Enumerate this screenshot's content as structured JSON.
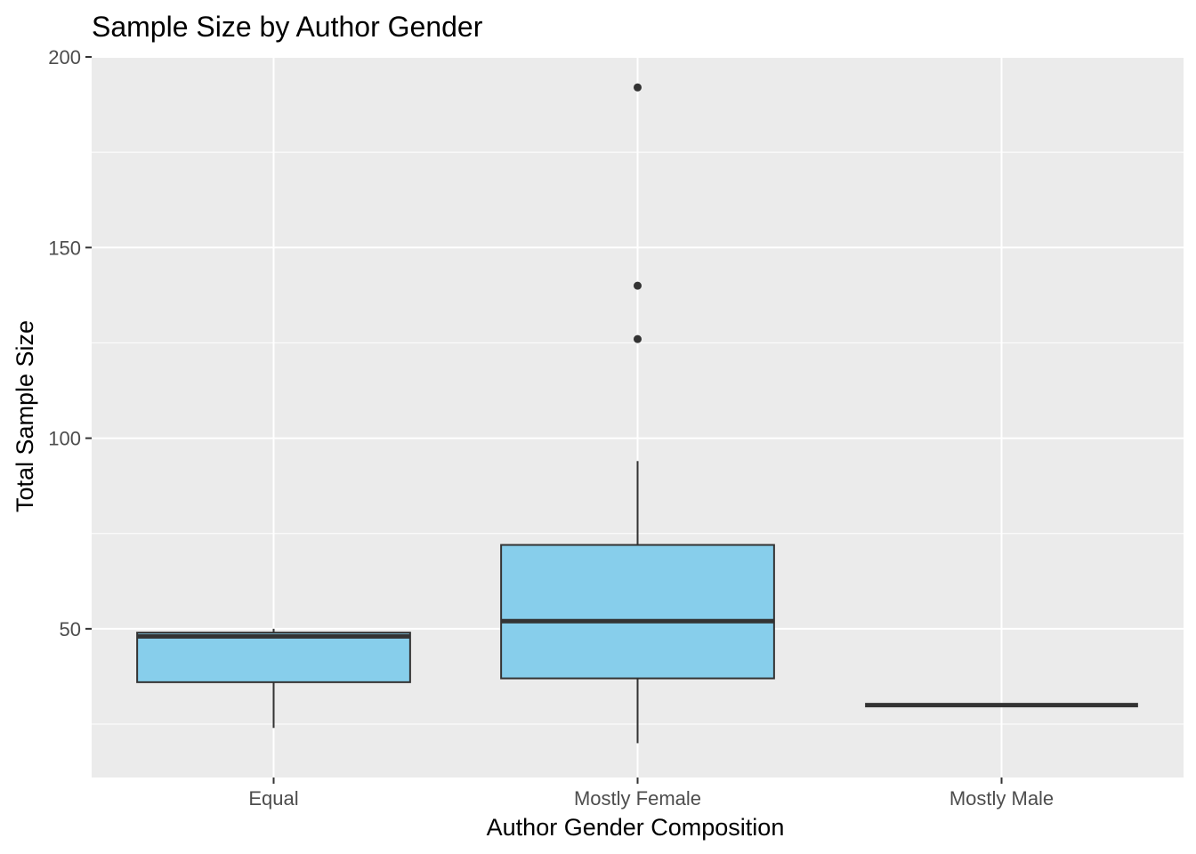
{
  "chart_data": {
    "type": "boxplot",
    "title": "Sample Size by Author Gender",
    "xlabel": "Author Gender Composition",
    "ylabel": "Total Sample Size",
    "categories": [
      "Equal",
      "Mostly Female",
      "Mostly Male"
    ],
    "ylim": [
      11,
      200
    ],
    "yticks": [
      50,
      100,
      150,
      200
    ],
    "grid": true,
    "fill_color": "#87CEEB",
    "stroke_color": "#333333",
    "panel_background": "#EBEBEB",
    "boxes": [
      {
        "category": "Equal",
        "min": 24,
        "q1": 36,
        "median": 48,
        "q3": 49,
        "max": 50,
        "outliers": []
      },
      {
        "category": "Mostly Female",
        "min": 20,
        "q1": 37,
        "median": 52,
        "q3": 72,
        "max": 94,
        "outliers": [
          126,
          140,
          192
        ]
      },
      {
        "category": "Mostly Male",
        "min": 30,
        "q1": 30,
        "median": 30,
        "q3": 30,
        "max": 30,
        "outliers": []
      }
    ]
  }
}
